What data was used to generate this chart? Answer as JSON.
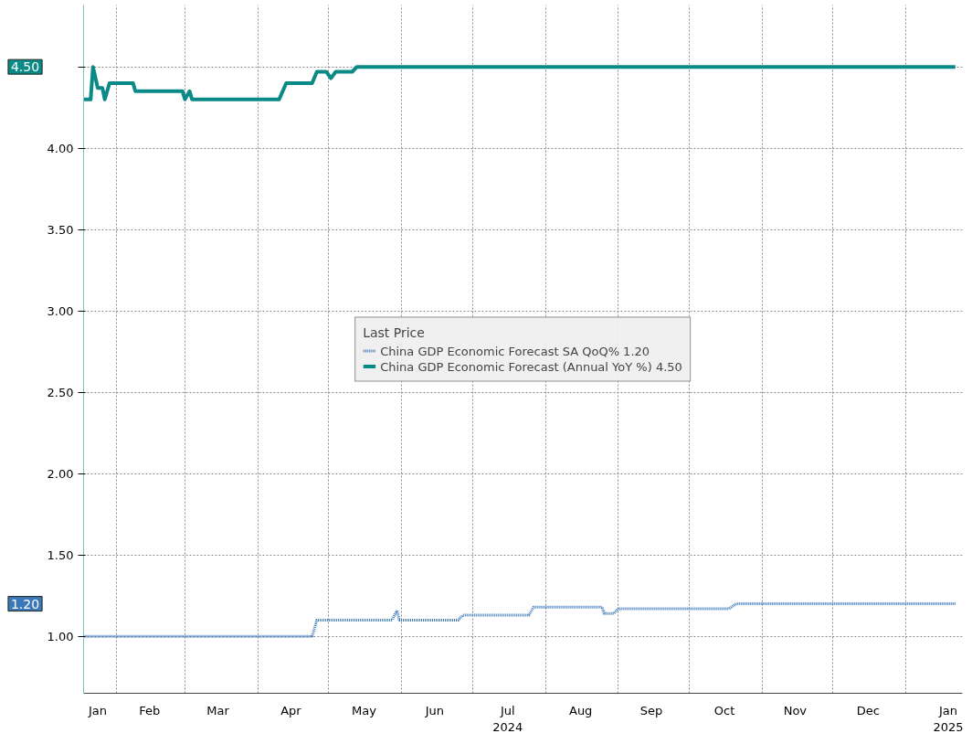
{
  "chart_data": {
    "type": "line",
    "legend_title": "Last Price",
    "legend": "center",
    "grid": true,
    "xlim": [
      "2024-01-18",
      "2025-01-25"
    ],
    "ylim": [
      0.65,
      4.88
    ],
    "yticks": [
      {
        "value": 1.0,
        "label": "1.00"
      },
      {
        "value": 1.5,
        "label": "1.50"
      },
      {
        "value": 2.0,
        "label": "2.00"
      },
      {
        "value": 2.5,
        "label": "2.50"
      },
      {
        "value": 3.0,
        "label": "3.00"
      },
      {
        "value": 3.5,
        "label": "3.50"
      },
      {
        "value": 4.0,
        "label": "4.00"
      },
      {
        "value": 4.5,
        "label": null
      }
    ],
    "xticks": [
      {
        "value": "2024-01-24",
        "label": "Jan"
      },
      {
        "value": "2024-02-01",
        "label": null
      },
      {
        "value": "2024-02-15",
        "label": "Feb"
      },
      {
        "value": "2024-03-01",
        "label": null
      },
      {
        "value": "2024-03-15",
        "label": "Mar"
      },
      {
        "value": "2024-04-01",
        "label": null
      },
      {
        "value": "2024-04-15",
        "label": "Apr"
      },
      {
        "value": "2024-05-01",
        "label": null
      },
      {
        "value": "2024-05-16",
        "label": "May"
      },
      {
        "value": "2024-06-01",
        "label": null
      },
      {
        "value": "2024-06-15",
        "label": "Jun"
      },
      {
        "value": "2024-07-01",
        "label": null
      },
      {
        "value": "2024-07-16",
        "label": "Jul\n2024"
      },
      {
        "value": "2024-08-01",
        "label": null
      },
      {
        "value": "2024-08-16",
        "label": "Aug"
      },
      {
        "value": "2024-09-01",
        "label": null
      },
      {
        "value": "2024-09-15",
        "label": "Sep"
      },
      {
        "value": "2024-10-01",
        "label": null
      },
      {
        "value": "2024-10-16",
        "label": "Oct"
      },
      {
        "value": "2024-11-01",
        "label": null
      },
      {
        "value": "2024-11-15",
        "label": "Nov"
      },
      {
        "value": "2024-12-01",
        "label": null
      },
      {
        "value": "2024-12-16",
        "label": "Dec"
      },
      {
        "value": "2025-01-01",
        "label": null
      },
      {
        "value": "2025-01-19",
        "label": "Jan\n2025"
      }
    ],
    "series": [
      {
        "name": "China GDP Economic Forecast SA QoQ% 1.20",
        "color": "#3b78b8",
        "line_style": "dotted",
        "x": [
          "2024-01-18",
          "2024-04-24",
          "2024-04-26",
          "2024-05-28",
          "2024-05-30",
          "2024-05-31",
          "2024-06-25",
          "2024-06-27",
          "2024-07-25",
          "2024-07-27",
          "2024-08-25",
          "2024-08-26",
          "2024-08-30",
          "2024-09-01",
          "2024-10-18",
          "2024-10-21",
          "2025-01-22"
        ],
        "values": [
          1.0,
          1.0,
          1.1,
          1.1,
          1.16,
          1.1,
          1.1,
          1.13,
          1.13,
          1.18,
          1.18,
          1.14,
          1.14,
          1.17,
          1.17,
          1.2,
          1.2
        ]
      },
      {
        "name": "China GDP Economic Forecast (Annual YoY %) 4.50",
        "color": "#0a8a87",
        "line_style": "solid",
        "x": [
          "2024-01-18",
          "2024-01-21",
          "2024-01-22",
          "2024-01-24",
          "2024-01-26",
          "2024-01-27",
          "2024-01-29",
          "2024-02-08",
          "2024-02-09",
          "2024-02-29",
          "2024-03-01",
          "2024-03-03",
          "2024-03-04",
          "2024-03-06",
          "2024-04-10",
          "2024-04-13",
          "2024-04-24",
          "2024-04-26",
          "2024-04-30",
          "2024-05-02",
          "2024-05-04",
          "2024-05-11",
          "2024-05-13",
          "2025-01-22"
        ],
        "values": [
          4.3,
          4.3,
          4.5,
          4.37,
          4.37,
          4.3,
          4.4,
          4.4,
          4.35,
          4.35,
          4.3,
          4.35,
          4.3,
          4.3,
          4.3,
          4.4,
          4.4,
          4.47,
          4.47,
          4.43,
          4.47,
          4.47,
          4.5,
          4.5
        ]
      }
    ],
    "annotations": [
      "1.20",
      "4.50"
    ]
  }
}
